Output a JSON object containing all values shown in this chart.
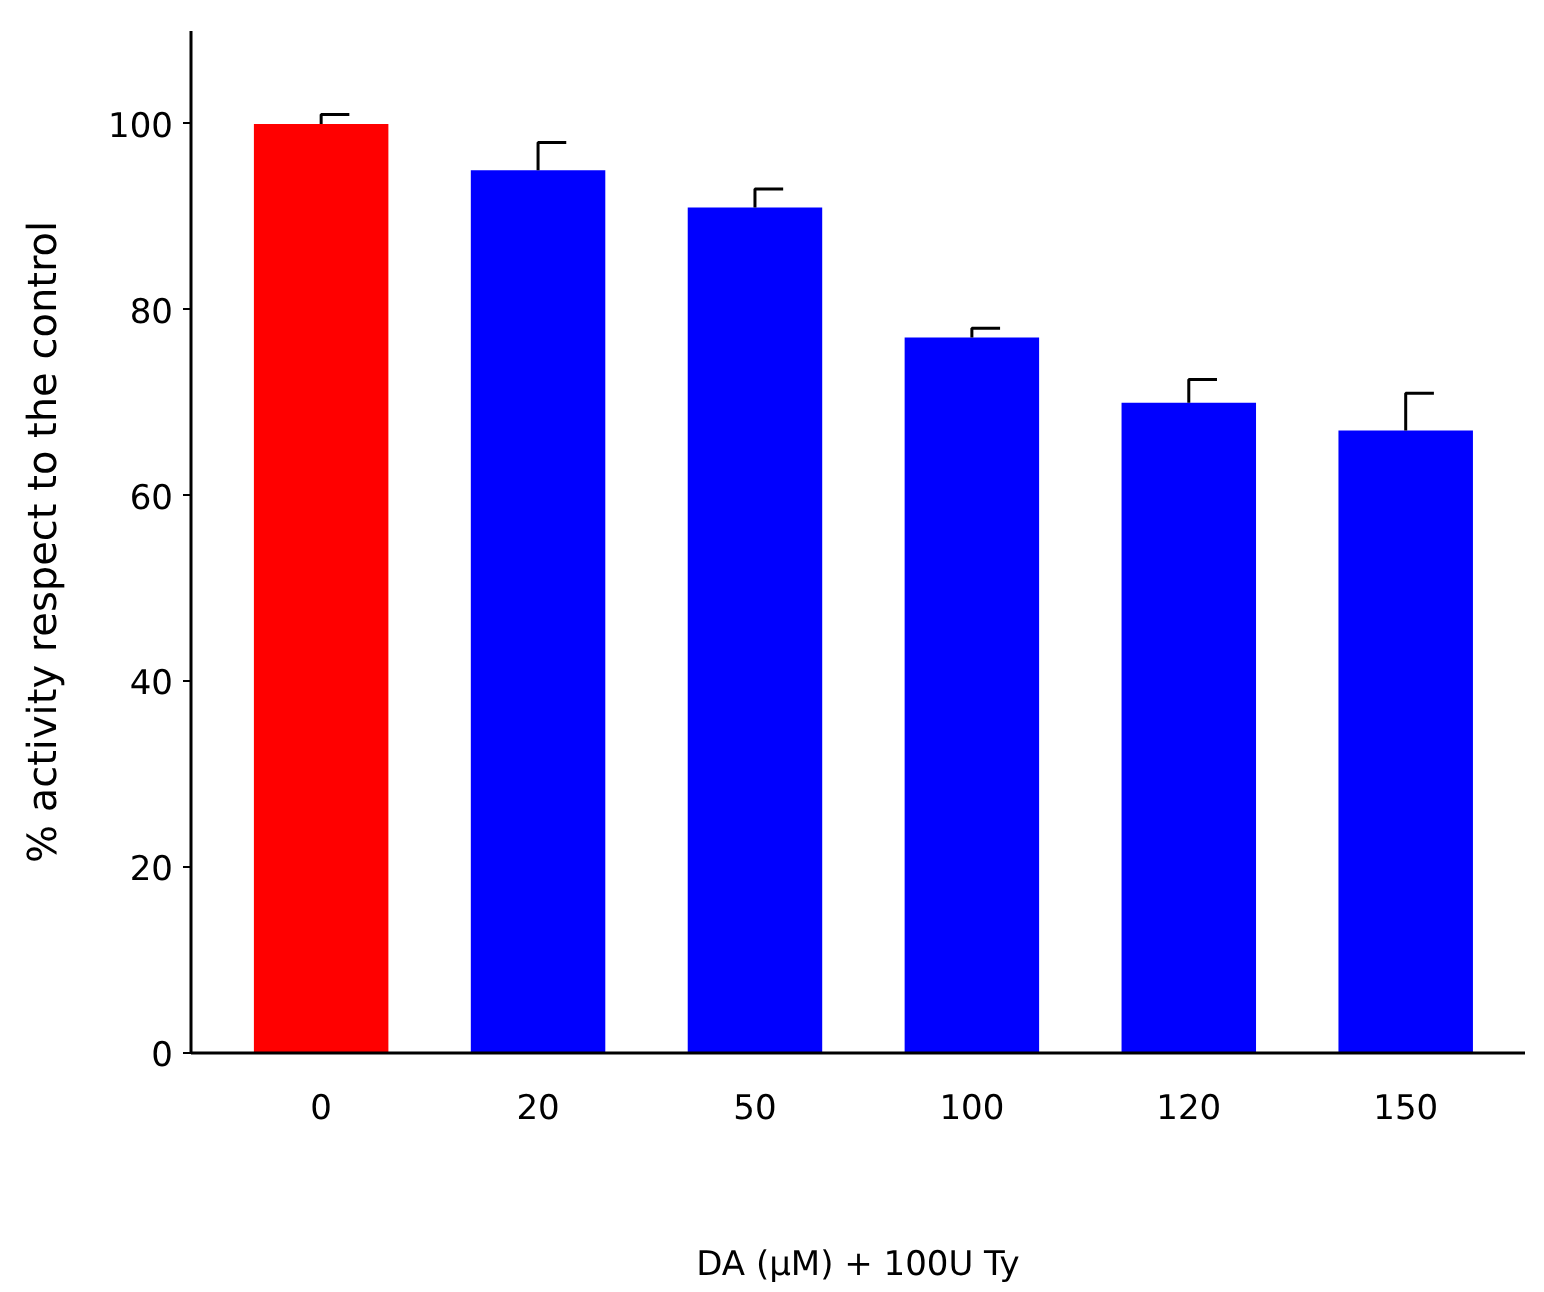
{
  "chart_data": {
    "type": "bar",
    "xlabel": "DA (μM) + 100U Ty",
    "ylabel": "% activity respect to the control",
    "categories": [
      "0",
      "20",
      "50",
      "100",
      "120",
      "150"
    ],
    "values": [
      100,
      95,
      91,
      77,
      70,
      67
    ],
    "colors": [
      "#ff0000",
      "#0000ff",
      "#0000ff",
      "#0000ff",
      "#0000ff",
      "#0000ff"
    ],
    "errors": [
      [
        100,
        101
      ],
      [
        95,
        98
      ],
      [
        91,
        93
      ],
      [
        77,
        78
      ],
      [
        70,
        72.5
      ],
      [
        67,
        71
      ]
    ],
    "ylim": [
      0,
      110
    ],
    "yticks": [
      0,
      20,
      40,
      60,
      80,
      100
    ],
    "grid": false
  }
}
